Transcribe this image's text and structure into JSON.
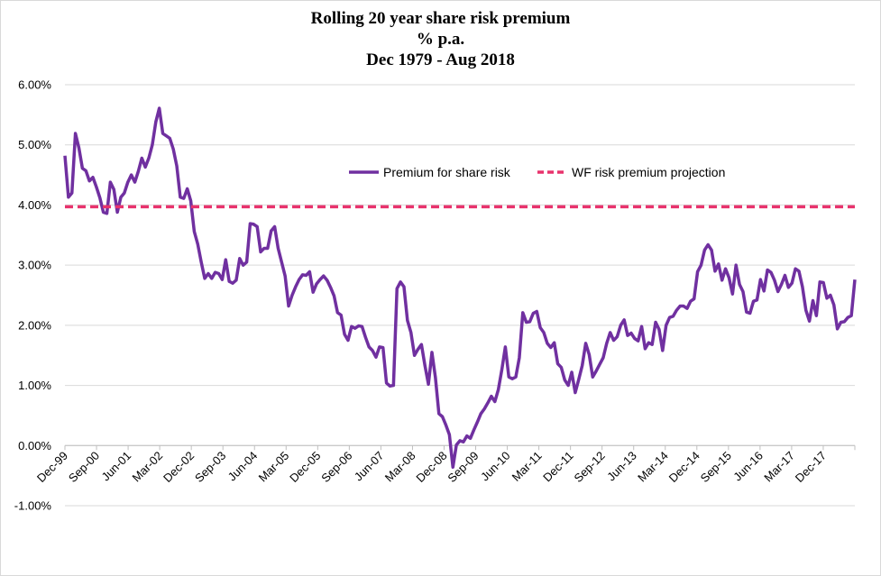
{
  "chart_data": {
    "type": "line",
    "title": "Rolling 20 year share risk premium",
    "subtitle": "% p.a.",
    "period": "Dec 1979 - Aug 2018",
    "xlabel": "",
    "ylabel": "",
    "ylim": [
      -0.01,
      0.06
    ],
    "ytick_values": [
      -0.01,
      0,
      0.01,
      0.02,
      0.03,
      0.04,
      0.05,
      0.06
    ],
    "ytick_labels": [
      "-1.00%",
      "0.00%",
      "1.00%",
      "2.00%",
      "3.00%",
      "4.00%",
      "5.00%",
      "6.00%"
    ],
    "xtick_labels": [
      "Dec-99",
      "Sep-00",
      "Jun-01",
      "Mar-02",
      "Dec-02",
      "Sep-03",
      "Jun-04",
      "Mar-05",
      "Dec-05",
      "Sep-06",
      "Jun-07",
      "Mar-08",
      "Dec-08",
      "Sep-09",
      "Jun-10",
      "Mar-11",
      "Dec-11",
      "Sep-12",
      "Jun-13",
      "Mar-14",
      "Dec-14",
      "Sep-15",
      "Jun-16",
      "Mar-17",
      "Dec-17"
    ],
    "x_start": "Dec-99",
    "x_end": "Aug-18",
    "grid": true,
    "legend_position": "upper-center",
    "series": [
      {
        "name": "Premium for share risk",
        "color": "#7030a0",
        "style": "solid",
        "values": [
          0.0482,
          0.0413,
          0.042,
          0.0519,
          0.0495,
          0.0461,
          0.0457,
          0.044,
          0.0446,
          0.043,
          0.0412,
          0.0388,
          0.0386,
          0.0438,
          0.0426,
          0.0388,
          0.0413,
          0.042,
          0.0438,
          0.045,
          0.0438,
          0.0456,
          0.0478,
          0.0463,
          0.0478,
          0.05,
          0.0538,
          0.0561,
          0.0519,
          0.0515,
          0.0511,
          0.0493,
          0.0465,
          0.0413,
          0.0411,
          0.0427,
          0.0407,
          0.0356,
          0.0335,
          0.0305,
          0.0278,
          0.0286,
          0.0278,
          0.0288,
          0.0286,
          0.0276,
          0.0309,
          0.0273,
          0.027,
          0.0275,
          0.0311,
          0.03,
          0.0305,
          0.0369,
          0.0368,
          0.0364,
          0.0322,
          0.0328,
          0.0328,
          0.0357,
          0.0364,
          0.0328,
          0.0305,
          0.0282,
          0.0232,
          0.025,
          0.0264,
          0.0276,
          0.0284,
          0.0283,
          0.0289,
          0.0255,
          0.0269,
          0.0276,
          0.0282,
          0.0275,
          0.0263,
          0.0249,
          0.0221,
          0.0217,
          0.0185,
          0.0175,
          0.0198,
          0.0195,
          0.0199,
          0.0198,
          0.018,
          0.0164,
          0.0158,
          0.0147,
          0.0164,
          0.0163,
          0.0104,
          0.0099,
          0.01,
          0.0261,
          0.0272,
          0.0264,
          0.0208,
          0.0188,
          0.015,
          0.016,
          0.0168,
          0.0133,
          0.0102,
          0.0155,
          0.0113,
          0.0053,
          0.0048,
          0.0034,
          0.0018,
          -0.0036,
          0.0001,
          0.0008,
          0.0006,
          0.0016,
          0.0012,
          0.0026,
          0.0039,
          0.0053,
          0.0061,
          0.0071,
          0.0082,
          0.0073,
          0.0093,
          0.0126,
          0.0164,
          0.0114,
          0.0111,
          0.0114,
          0.0146,
          0.0221,
          0.0205,
          0.0206,
          0.022,
          0.0223,
          0.0196,
          0.0188,
          0.017,
          0.0163,
          0.0171,
          0.0136,
          0.013,
          0.0109,
          0.01,
          0.0122,
          0.0088,
          0.011,
          0.0133,
          0.017,
          0.0151,
          0.0114,
          0.0124,
          0.0135,
          0.0146,
          0.017,
          0.0188,
          0.0175,
          0.0181,
          0.02,
          0.0209,
          0.0183,
          0.0187,
          0.0178,
          0.0174,
          0.0198,
          0.0161,
          0.0171,
          0.0168,
          0.0205,
          0.0193,
          0.0158,
          0.02,
          0.0213,
          0.0215,
          0.0225,
          0.0232,
          0.0232,
          0.0228,
          0.024,
          0.0244,
          0.0289,
          0.03,
          0.0325,
          0.0334,
          0.0325,
          0.029,
          0.0302,
          0.0275,
          0.0294,
          0.0279,
          0.0252,
          0.03,
          0.0268,
          0.0256,
          0.0222,
          0.022,
          0.024,
          0.0242,
          0.0276,
          0.0257,
          0.0292,
          0.0288,
          0.0275,
          0.0256,
          0.0268,
          0.0283,
          0.0263,
          0.027,
          0.0294,
          0.029,
          0.0264,
          0.0225,
          0.0207,
          0.0241,
          0.0216,
          0.0272,
          0.0271,
          0.0245,
          0.025,
          0.0234,
          0.0194,
          0.0205,
          0.0206,
          0.0213,
          0.0216,
          0.0276
        ]
      },
      {
        "name": "WF risk premium projection",
        "color": "#e8336d",
        "style": "dashed",
        "values": [
          0.0397,
          0.0397
        ]
      }
    ]
  }
}
